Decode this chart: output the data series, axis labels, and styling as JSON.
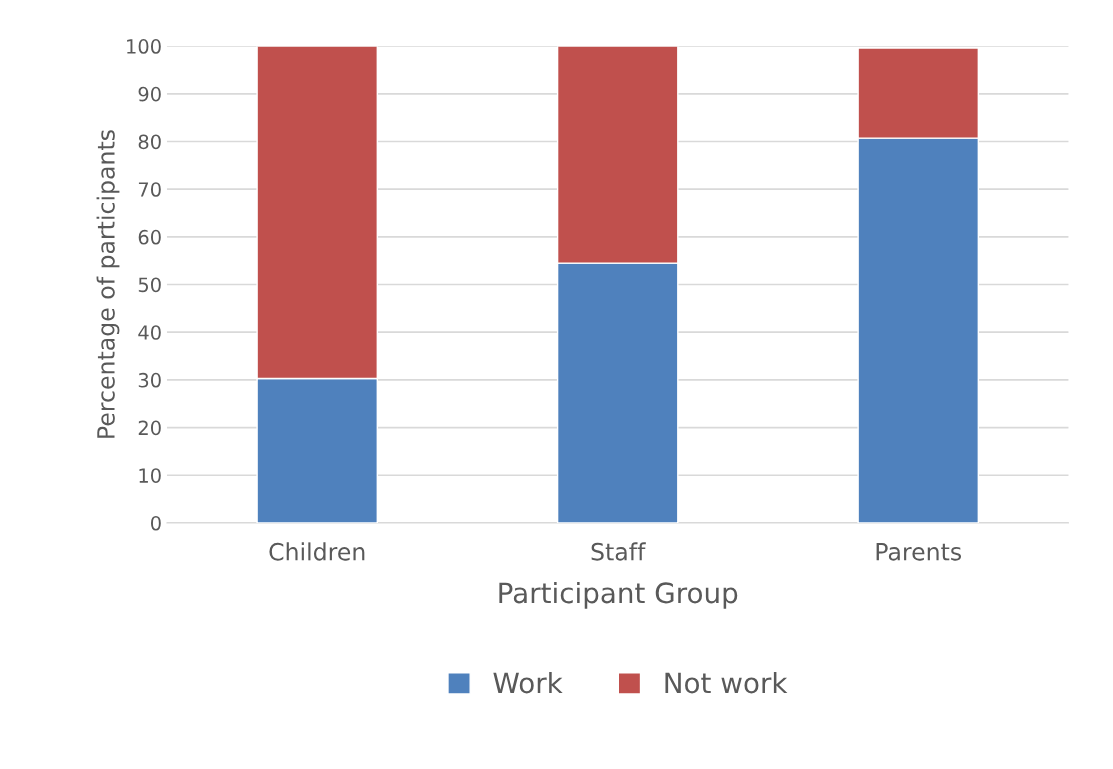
{
  "chart_data": {
    "type": "bar",
    "stacked": true,
    "xlabel": "Participant Group",
    "ylabel": "Percentage of participants",
    "categories": [
      "Children",
      "Staff",
      "Parents"
    ],
    "series": [
      {
        "name": "Work",
        "color": "#4f81bd",
        "values": [
          30.3,
          54.5,
          80.7
        ]
      },
      {
        "name": "Not work",
        "color": "#c0504d",
        "values": [
          69.7,
          45.5,
          18.9
        ]
      }
    ],
    "ylim": [
      0,
      100
    ],
    "yticks": [
      0,
      10,
      20,
      30,
      40,
      50,
      60,
      70,
      80,
      90,
      100
    ],
    "grid": "y",
    "legend": "bottom"
  }
}
